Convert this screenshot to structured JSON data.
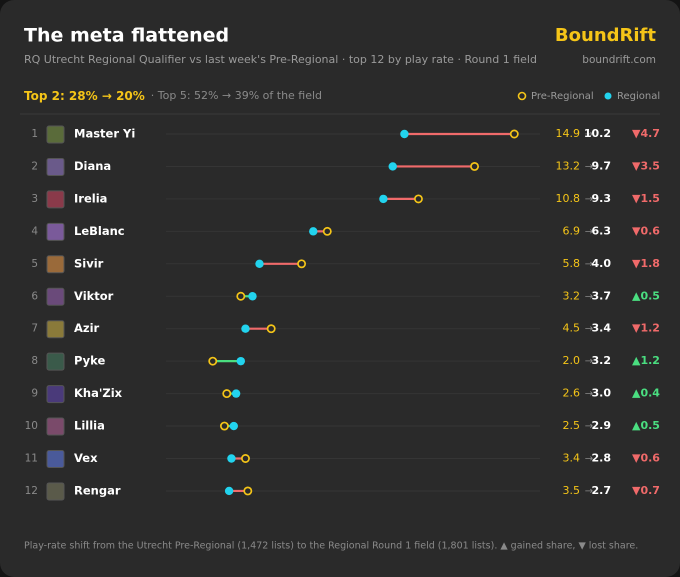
{
  "chart_data": {
    "type": "dumbbell",
    "title": "The meta flattened",
    "subtitle": "RQ Utrecht Regional Qualifier vs last week's Pre-Regional · top 12 by play rate · Round 1 field",
    "brand": "BoundRift",
    "brand_url": "boundrift.com",
    "headline": "Top 2: 28% → 20%",
    "headline_note": "· Top 5: 52% → 39% of the field",
    "footer": "Play-rate shift from the Utrecht Pre-Regional (1,472 lists) to the Regional Round 1 field (1,801 lists). ▲ gained share, ▼ lost share.",
    "ranks": [
      1,
      2,
      3,
      4,
      5,
      6,
      7,
      8,
      9,
      10,
      11,
      12
    ],
    "categories": [
      "Master Yi",
      "Diana",
      "Irelia",
      "LeBlanc",
      "Sivir",
      "Viktor",
      "Azir",
      "Pyke",
      "Kha'Zix",
      "Lillia",
      "Vex",
      "Rengar"
    ],
    "value_separator": "→",
    "series": [
      {
        "name": "Pre-Regional",
        "color": "#f5c518",
        "values": [
          14.9,
          13.2,
          10.8,
          6.9,
          5.8,
          3.2,
          4.5,
          2.0,
          2.6,
          2.5,
          3.4,
          3.5
        ],
        "value_labels": [
          "14.9",
          "13.2",
          "10.8",
          "6.9",
          "5.8",
          "3.2",
          "4.5",
          "2.0",
          "2.6",
          "2.5",
          "3.4",
          "3.5"
        ]
      },
      {
        "name": "Regional",
        "color": "#22d3ee",
        "values": [
          10.2,
          9.7,
          9.3,
          6.3,
          4.0,
          3.7,
          3.4,
          3.2,
          3.0,
          2.9,
          2.8,
          2.7
        ],
        "value_labels": [
          "10.2",
          "9.7",
          "9.3",
          "6.3",
          "4.0",
          "3.7",
          "3.4",
          "3.2",
          "3.0",
          "2.9",
          "2.8",
          "2.7"
        ]
      }
    ],
    "change_labels": [
      "▼4.7",
      "▼3.5",
      "▼1.5",
      "▼0.6",
      "▼1.8",
      "▲0.5",
      "▼1.2",
      "▲1.2",
      "▲0.4",
      "▲0.5",
      "▼0.6",
      "▼0.7"
    ],
    "up_color": "#4ade80",
    "down_color": "#f06a6a",
    "xlim": [
      0,
      16
    ]
  }
}
